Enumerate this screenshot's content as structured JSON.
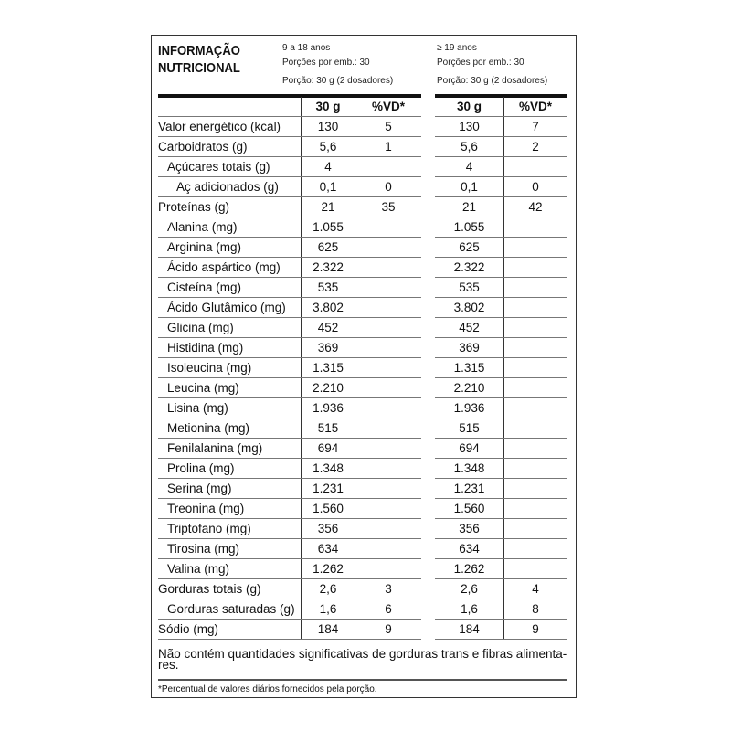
{
  "title_line1": "INFORMAÇÃO",
  "title_line2": "NUTRICIONAL",
  "groups": [
    {
      "age": "9 a 18 anos",
      "portions": "Porções por emb.: 30",
      "portion": "Porção: 30 g (2 dosadores)"
    },
    {
      "age": "≥ 19 anos",
      "portions": "Porções por emb.: 30",
      "portion": "Porção: 30 g (2 dosadores)"
    }
  ],
  "headers": {
    "amount": "30 g",
    "vd": "%VD*"
  },
  "rows": [
    {
      "label": "Valor energético (kcal)",
      "indent": 0,
      "a1": "130",
      "v1": "5",
      "a2": "130",
      "v2": "7"
    },
    {
      "label": "Carboidratos (g)",
      "indent": 0,
      "a1": "5,6",
      "v1": "1",
      "a2": "5,6",
      "v2": "2"
    },
    {
      "label": "Açúcares totais (g)",
      "indent": 1,
      "a1": "4",
      "v1": "",
      "a2": "4",
      "v2": ""
    },
    {
      "label": "Aç adicionados (g)",
      "indent": 2,
      "a1": "0,1",
      "v1": "0",
      "a2": "0,1",
      "v2": "0"
    },
    {
      "label": "Proteínas (g)",
      "indent": 0,
      "a1": "21",
      "v1": "35",
      "a2": "21",
      "v2": "42"
    },
    {
      "label": "Alanina (mg)",
      "indent": 1,
      "a1": "1.055",
      "v1": "",
      "a2": "1.055",
      "v2": ""
    },
    {
      "label": "Arginina (mg)",
      "indent": 1,
      "a1": "625",
      "v1": "",
      "a2": "625",
      "v2": ""
    },
    {
      "label": "Ácido aspártico (mg)",
      "indent": 1,
      "a1": "2.322",
      "v1": "",
      "a2": "2.322",
      "v2": ""
    },
    {
      "label": "Cisteína (mg)",
      "indent": 1,
      "a1": "535",
      "v1": "",
      "a2": "535",
      "v2": ""
    },
    {
      "label": "Ácido Glutâmico (mg)",
      "indent": 1,
      "a1": "3.802",
      "v1": "",
      "a2": "3.802",
      "v2": ""
    },
    {
      "label": "Glicina (mg)",
      "indent": 1,
      "a1": "452",
      "v1": "",
      "a2": "452",
      "v2": ""
    },
    {
      "label": "Histidina (mg)",
      "indent": 1,
      "a1": "369",
      "v1": "",
      "a2": "369",
      "v2": ""
    },
    {
      "label": "Isoleucina (mg)",
      "indent": 1,
      "a1": "1.315",
      "v1": "",
      "a2": "1.315",
      "v2": ""
    },
    {
      "label": "Leucina (mg)",
      "indent": 1,
      "a1": "2.210",
      "v1": "",
      "a2": "2.210",
      "v2": ""
    },
    {
      "label": "Lisina (mg)",
      "indent": 1,
      "a1": "1.936",
      "v1": "",
      "a2": "1.936",
      "v2": ""
    },
    {
      "label": "Metionina (mg)",
      "indent": 1,
      "a1": "515",
      "v1": "",
      "a2": "515",
      "v2": ""
    },
    {
      "label": "Fenilalanina (mg)",
      "indent": 1,
      "a1": "694",
      "v1": "",
      "a2": "694",
      "v2": ""
    },
    {
      "label": "Prolina (mg)",
      "indent": 1,
      "a1": "1.348",
      "v1": "",
      "a2": "1.348",
      "v2": ""
    },
    {
      "label": "Serina (mg)",
      "indent": 1,
      "a1": "1.231",
      "v1": "",
      "a2": "1.231",
      "v2": ""
    },
    {
      "label": "Treonina (mg)",
      "indent": 1,
      "a1": "1.560",
      "v1": "",
      "a2": "1.560",
      "v2": ""
    },
    {
      "label": "Triptofano (mg)",
      "indent": 1,
      "a1": "356",
      "v1": "",
      "a2": "356",
      "v2": ""
    },
    {
      "label": "Tirosina (mg)",
      "indent": 1,
      "a1": "634",
      "v1": "",
      "a2": "634",
      "v2": ""
    },
    {
      "label": "Valina (mg)",
      "indent": 1,
      "a1": "1.262",
      "v1": "",
      "a2": "1.262",
      "v2": ""
    },
    {
      "label": "Gorduras totais (g)",
      "indent": 0,
      "a1": "2,6",
      "v1": "3",
      "a2": "2,6",
      "v2": "4"
    },
    {
      "label": "Gorduras saturadas (g)",
      "indent": 1,
      "a1": "1,6",
      "v1": "6",
      "a2": "1,6",
      "v2": "8"
    },
    {
      "label": "Sódio (mg)",
      "indent": 0,
      "a1": "184",
      "v1": "9",
      "a2": "184",
      "v2": "9"
    }
  ],
  "note": "Não contém quantidades significativas de gorduras trans e fibras alimenta-res.",
  "footnote": "*Percentual de valores diários fornecidos pela porção."
}
